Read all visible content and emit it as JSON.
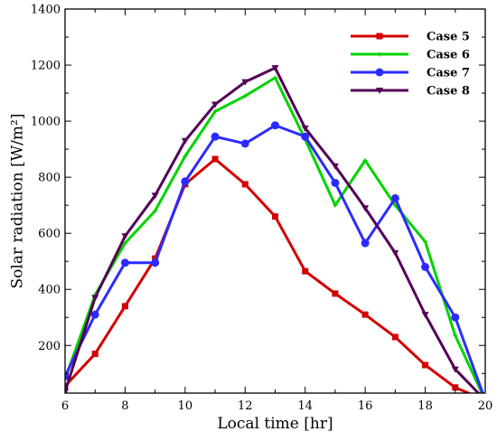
{
  "chart_data": {
    "type": "line",
    "title": "",
    "xlabel": "Local time [hr]",
    "ylabel": "Solar radiation [W/m²]",
    "xlim": [
      6,
      20
    ],
    "ylim": [
      30,
      1400
    ],
    "x_ticks": [
      6,
      8,
      10,
      12,
      14,
      16,
      18,
      20
    ],
    "y_ticks": [
      200,
      400,
      600,
      800,
      1000,
      1200,
      1400
    ],
    "grid": false,
    "legend_position": "top-right",
    "series": [
      {
        "name": "Case 5",
        "color": "#d40000",
        "marker": "square",
        "x": [
          6,
          7,
          8,
          9,
          10,
          11,
          12,
          13,
          14,
          15,
          16,
          17,
          18,
          19,
          20
        ],
        "y": [
          55,
          170,
          340,
          510,
          775,
          865,
          775,
          660,
          465,
          385,
          310,
          230,
          130,
          50,
          5
        ]
      },
      {
        "name": "Case 6",
        "color": "#00d400",
        "marker": "plus",
        "x": [
          6,
          7,
          8,
          9,
          10,
          11,
          12,
          13,
          14,
          15,
          16,
          17,
          18,
          19,
          20
        ],
        "y": [
          80,
          380,
          565,
          680,
          875,
          1035,
          1090,
          1155,
          935,
          700,
          860,
          700,
          570,
          235,
          5
        ]
      },
      {
        "name": "Case 7",
        "color": "#2b2bff",
        "marker": "circle",
        "x": [
          6,
          7,
          8,
          9,
          10,
          11,
          12,
          13,
          14,
          15,
          16,
          17,
          18,
          19,
          20
        ],
        "y": [
          90,
          310,
          495,
          495,
          785,
          945,
          920,
          985,
          945,
          780,
          565,
          725,
          480,
          300,
          5
        ]
      },
      {
        "name": "Case 8",
        "color": "#550055",
        "marker": "triangle-down",
        "x": [
          6,
          7,
          8,
          9,
          10,
          11,
          12,
          13,
          14,
          15,
          16,
          17,
          18,
          19,
          20
        ],
        "y": [
          35,
          370,
          590,
          735,
          930,
          1060,
          1140,
          1190,
          975,
          840,
          690,
          530,
          310,
          115,
          5
        ]
      }
    ]
  }
}
